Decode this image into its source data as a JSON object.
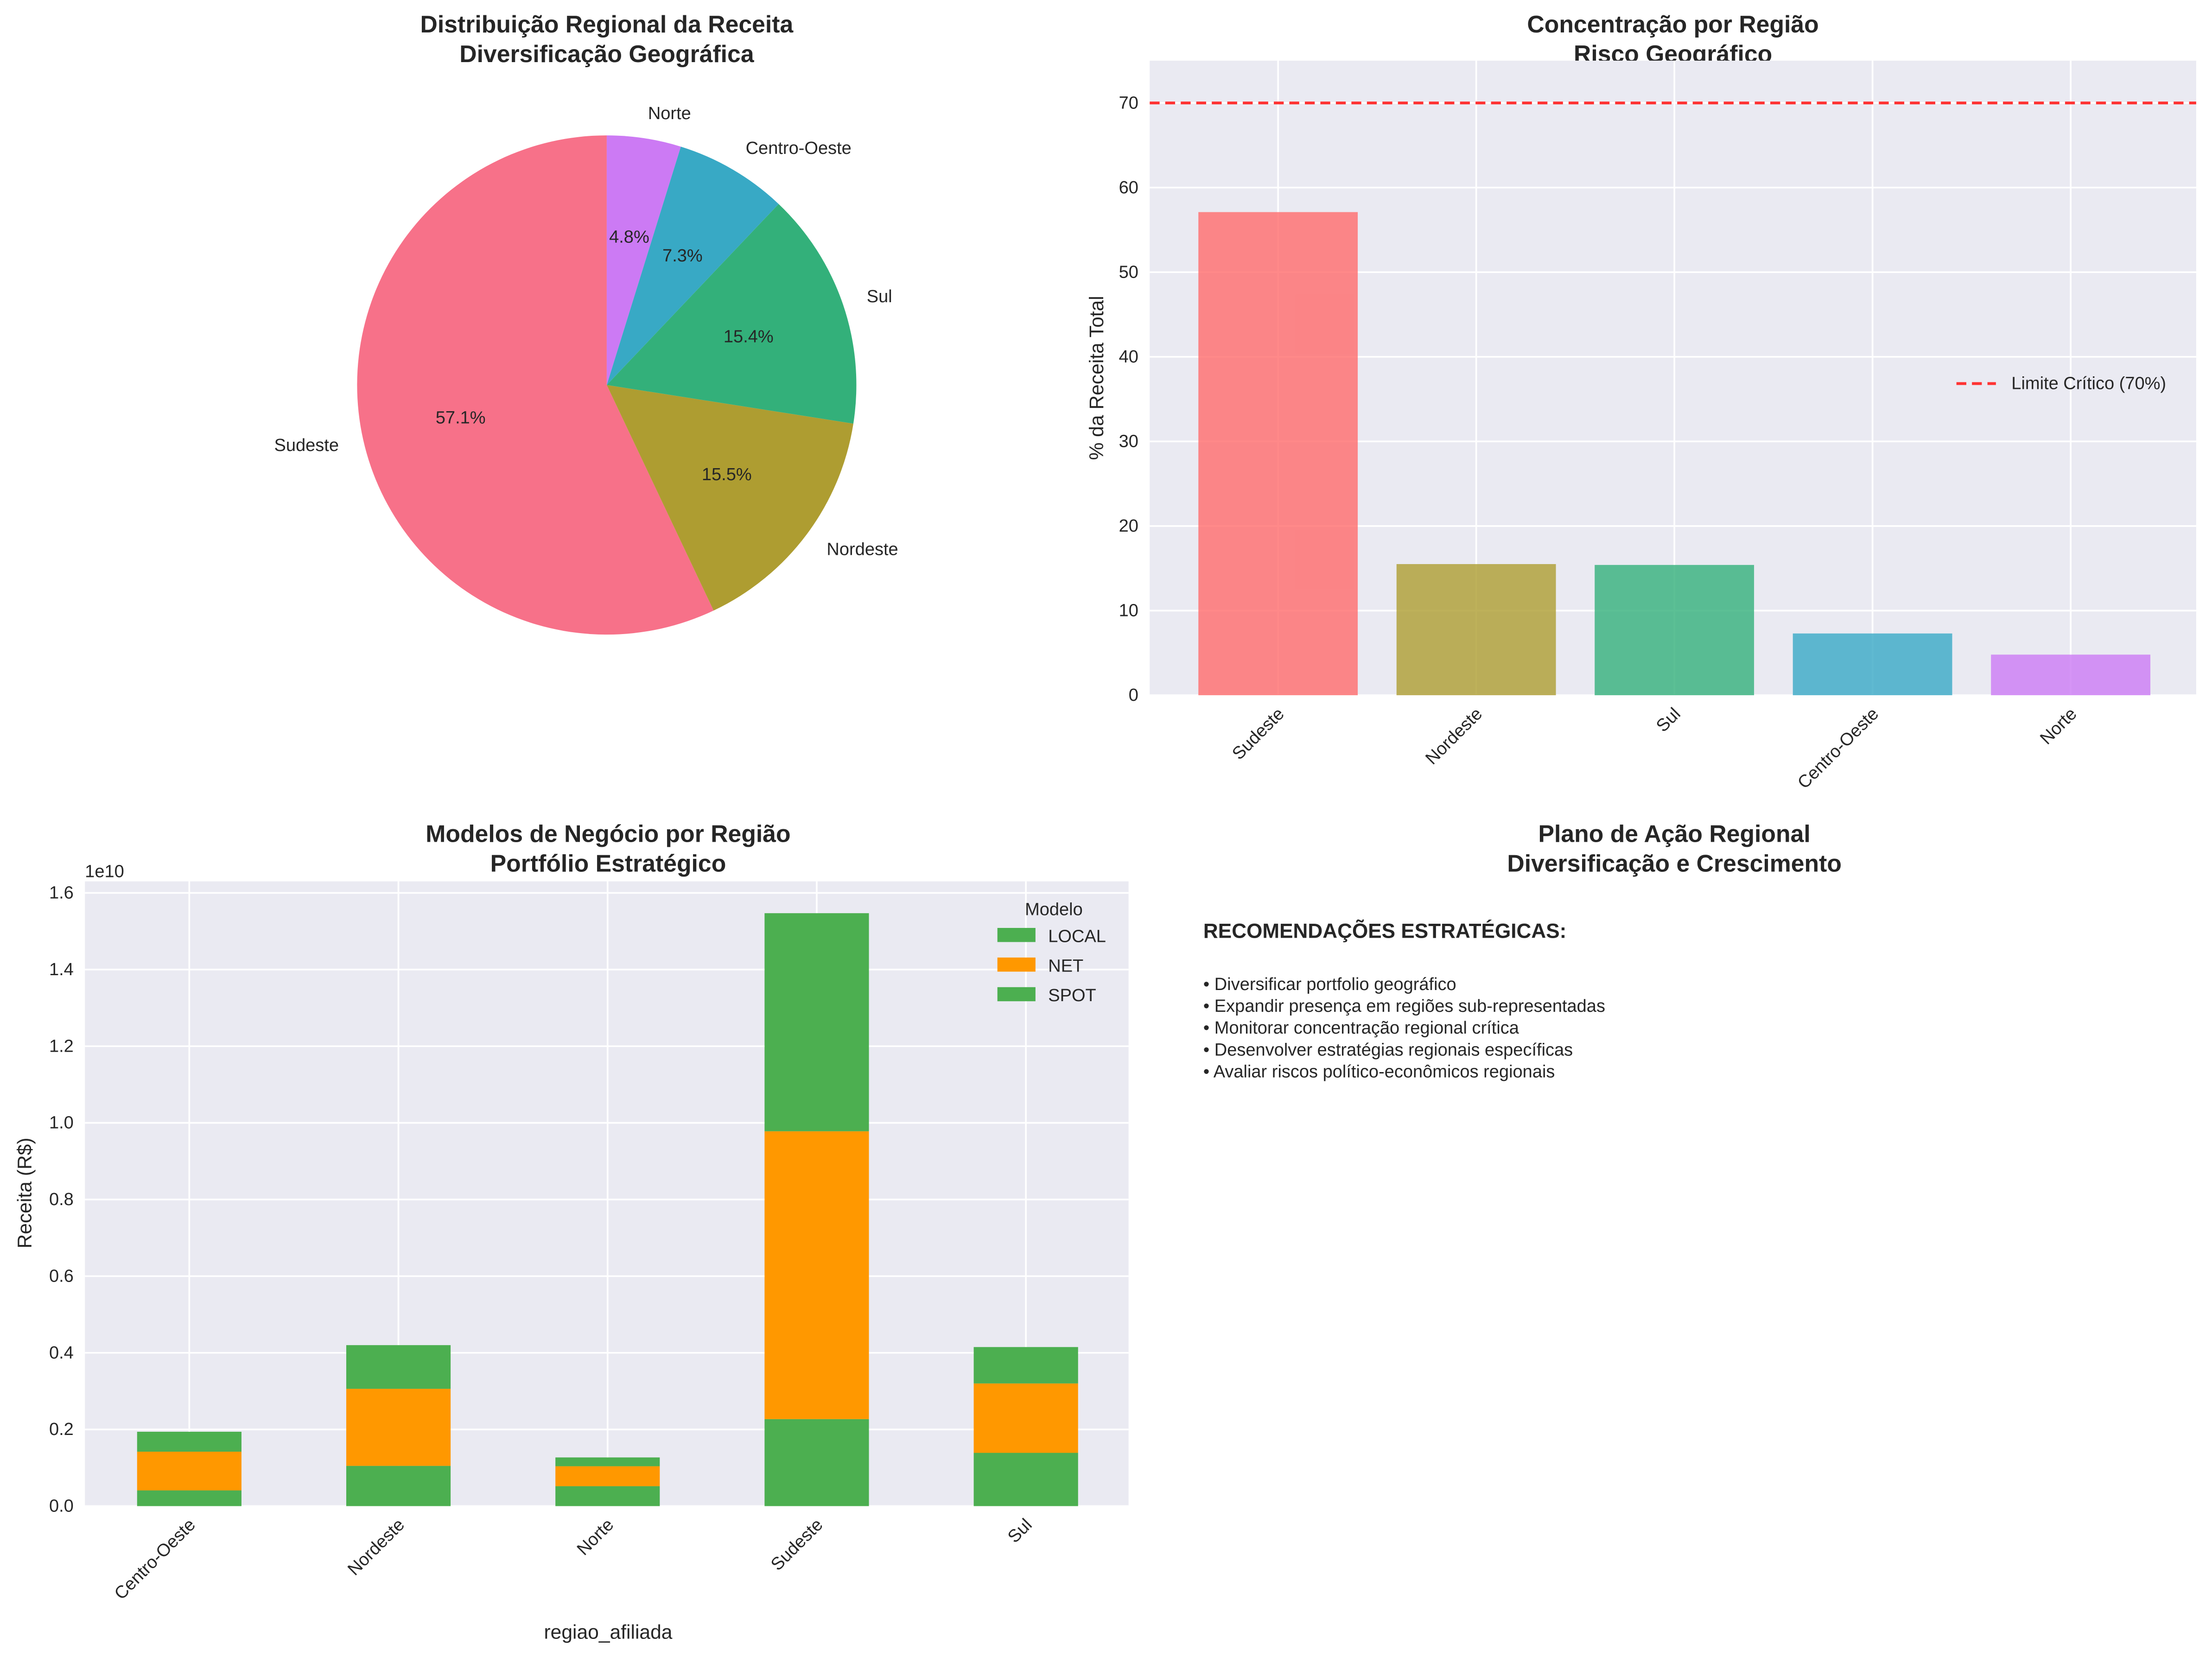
{
  "chart_data": [
    {
      "type": "pie",
      "title": "Distribuição Regional da Receita",
      "subtitle": "Diversificação Geográfica",
      "categories": [
        "Sudeste",
        "Nordeste",
        "Sul",
        "Centro-Oeste",
        "Norte"
      ],
      "values": [
        57.1,
        15.5,
        15.4,
        7.3,
        4.8
      ],
      "labels": [
        "57.1%",
        "15.5%",
        "15.4%",
        "7.3%",
        "4.8%"
      ],
      "colors": [
        "#f77189",
        "#ae9d31",
        "#33b07a",
        "#38a9c5",
        "#cc7af4"
      ],
      "start_angle": 90
    },
    {
      "type": "bar",
      "title": "Concentração por Região",
      "subtitle": "Risco Geográfico",
      "categories": [
        "Sudeste",
        "Nordeste",
        "Sul",
        "Centro-Oeste",
        "Norte"
      ],
      "values": [
        57.1,
        15.5,
        15.4,
        7.3,
        4.8
      ],
      "colors": [
        "#ff6b6b",
        "#ae9d31",
        "#33b07a",
        "#38a9c5",
        "#cc7af4"
      ],
      "ylabel": "% da Receita Total",
      "xlabel": "",
      "ylim": [
        0,
        75
      ],
      "yticks": [
        "0",
        "10",
        "20",
        "30",
        "40",
        "50",
        "60",
        "70"
      ],
      "reference_line": {
        "value": 70,
        "label": "Limite Crítico (70%)",
        "color": "#ff3333"
      },
      "legend": "right",
      "grid": true
    },
    {
      "type": "bar",
      "stacked": true,
      "title": "Modelos de Negócio por Região",
      "subtitle": "Portfólio Estratégico",
      "categories": [
        "Centro-Oeste",
        "Nordeste",
        "Norte",
        "Sudeste",
        "Sul"
      ],
      "series": [
        {
          "name": "LOCAL",
          "color": "#4caf50",
          "values": [
            0.041,
            0.105,
            0.052,
            0.227,
            0.139
          ]
        },
        {
          "name": "NET",
          "color": "#ff9800",
          "values": [
            0.101,
            0.201,
            0.052,
            0.751,
            0.181
          ]
        },
        {
          "name": "SPOT",
          "color": "#4caf50",
          "values": [
            0.052,
            0.114,
            0.023,
            0.569,
            0.095
          ]
        }
      ],
      "scale_label": "1e10",
      "ylabel": "Receita (R$)",
      "xlabel": "regiao_afiliada",
      "ylim": [
        0,
        1.63
      ],
      "yticks": [
        "0.0",
        "0.2",
        "0.4",
        "0.6",
        "0.8",
        "1.0",
        "1.2",
        "1.4",
        "1.6"
      ],
      "legend_title": "Modelo",
      "legend": "top-right",
      "grid": true
    }
  ],
  "action_panel": {
    "title": "Plano de Ação Regional",
    "subtitle": "Diversificação e Crescimento",
    "heading": "RECOMENDAÇÕES ESTRATÉGICAS:",
    "items": [
      "• Diversificar portfolio geográfico",
      "• Expandir presença em regiões sub-representadas",
      "• Monitorar concentração regional crítica",
      "• Desenvolver estratégias regionais específicas",
      "• Avaliar riscos político-econômicos regionais"
    ]
  }
}
